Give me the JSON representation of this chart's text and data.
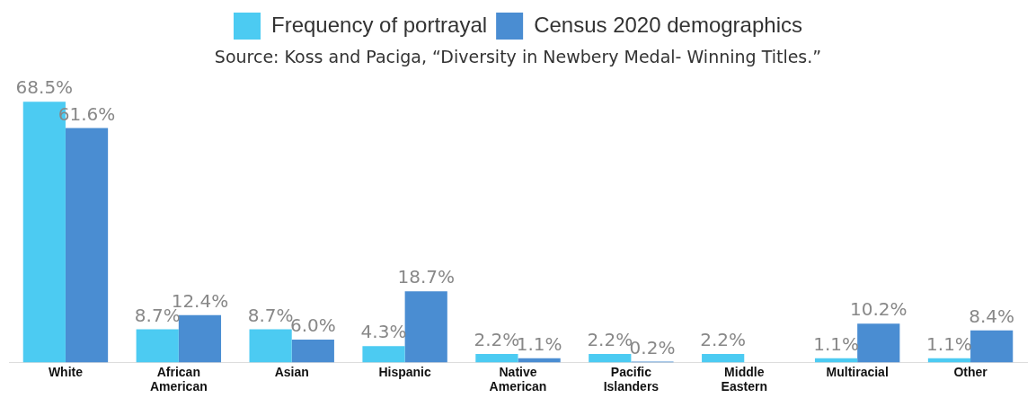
{
  "chart_data": {
    "type": "bar",
    "categories": [
      "White",
      "African American",
      "Asian",
      "Hispanic",
      "Native American",
      "Pacific Islanders",
      "Middle Eastern",
      "Multiracial",
      "Other"
    ],
    "series": [
      {
        "name": "Frequency of portrayal",
        "color": "#4ccbf2",
        "values": [
          68.5,
          8.7,
          8.7,
          4.3,
          2.2,
          2.2,
          2.2,
          1.1,
          1.1
        ],
        "value_labels": [
          "68.5%",
          "8.7%",
          "8.7%",
          "4.3%",
          "2.2%",
          "2.2%",
          "2.2%",
          "1.1%",
          "1.1%"
        ]
      },
      {
        "name": "Census 2020 demographics",
        "color": "#4a8dd2",
        "values": [
          61.6,
          12.4,
          6.0,
          18.7,
          1.1,
          0.2,
          null,
          10.2,
          8.4
        ],
        "value_labels": [
          "61.6%",
          "12.4%",
          "6.0%",
          "18.7%",
          "1.1%",
          "0.2%",
          null,
          "10.2%",
          "8.4%"
        ]
      }
    ],
    "annotations": [
      "Source: Koss and Paciga, “Diversity in Newbery Medal- Winning Titles.”"
    ],
    "legend": "top",
    "grid": false
  }
}
